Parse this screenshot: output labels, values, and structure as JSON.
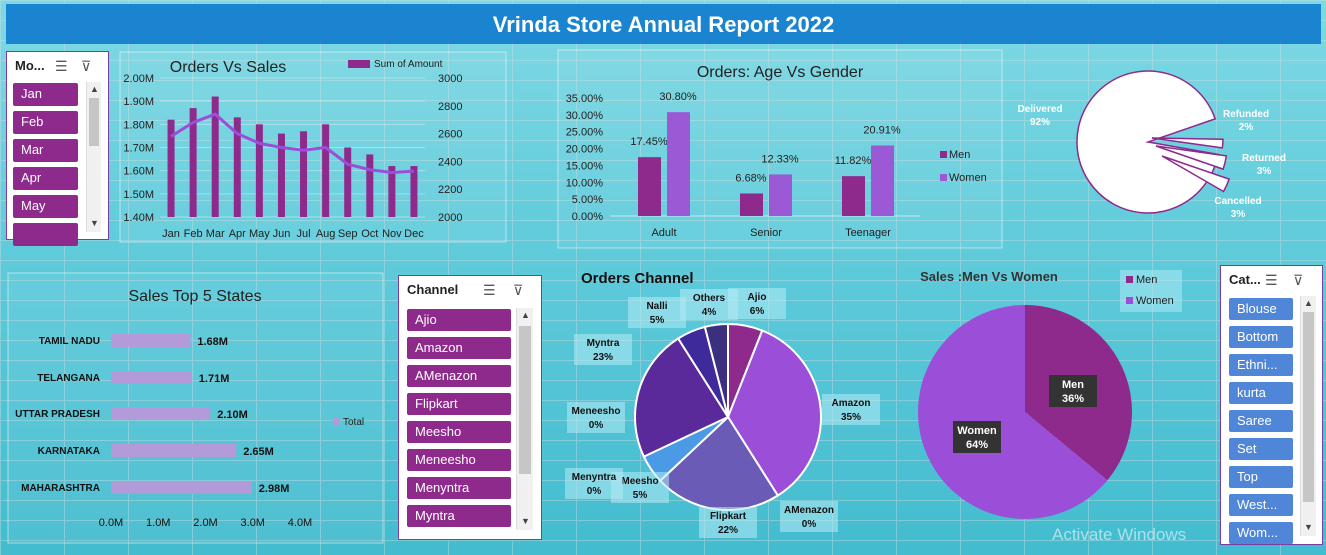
{
  "report_title": "Vrinda Store Annual Report 2022",
  "watermark": "Activate Windows",
  "month_slicer": {
    "header": "Mo...",
    "items": [
      "Jan",
      "Feb",
      "Mar",
      "Apr",
      "May",
      ""
    ]
  },
  "channel_slicer": {
    "header": "Channel",
    "items": [
      "Ajio",
      "Amazon",
      "AMenazon",
      "Flipkart",
      "Meesho",
      "Meneesho",
      "Menyntra",
      "Myntra"
    ]
  },
  "category_slicer": {
    "header": "Cat...",
    "items": [
      "Blouse",
      "Bottom",
      "Ethni...",
      "kurta",
      "Saree",
      "Set",
      "Top",
      "West...",
      "Wom..."
    ]
  },
  "colors": {
    "title_bar": "#1a84d0",
    "purple_dark": "#8e2a8c",
    "purple_light": "#9b59d6",
    "slicer_fill": "#8e2a8c",
    "cat_fill": "#4f86d8"
  },
  "chart_data": [
    {
      "id": "orders_vs_sales",
      "type": "bar",
      "title": "Orders Vs Sales",
      "categories": [
        "Jan",
        "Feb",
        "Mar",
        "Apr",
        "May",
        "Jun",
        "Jul",
        "Aug",
        "Sep",
        "Oct",
        "Nov",
        "Dec"
      ],
      "series": [
        {
          "name": "Sum of Amount",
          "values": [
            1.82,
            1.87,
            1.92,
            1.83,
            1.8,
            1.76,
            1.77,
            1.8,
            1.7,
            1.67,
            1.62,
            1.62
          ]
        },
        {
          "name": "",
          "type": "line",
          "values": [
            2580,
            2680,
            2740,
            2600,
            2530,
            2500,
            2480,
            2500,
            2380,
            2340,
            2320,
            2330
          ]
        }
      ],
      "ylim": [
        1.4,
        2.0
      ],
      "y_ticks": [
        "1.40M",
        "1.50M",
        "1.60M",
        "1.70M",
        "1.80M",
        "1.90M",
        "2.00M"
      ],
      "y2lim": [
        2000,
        3000
      ],
      "y2_ticks": [
        "2000",
        "2200",
        "2400",
        "2600",
        "2800",
        "3000"
      ],
      "legend": "top-right"
    },
    {
      "id": "age_vs_gender",
      "type": "bar",
      "title": "Orders: Age Vs Gender",
      "categories": [
        "Adult",
        "Senior",
        "Teenager"
      ],
      "series": [
        {
          "name": "Men",
          "values": [
            17.45,
            6.68,
            11.82
          ],
          "labels": [
            "17.45%",
            "6.68%",
            "11.82%"
          ]
        },
        {
          "name": "Women",
          "values": [
            30.8,
            12.33,
            20.91
          ],
          "labels": [
            "30.80%",
            "12.33%",
            "20.91%"
          ]
        }
      ],
      "ylim": [
        0,
        35
      ],
      "y_ticks": [
        "0.00%",
        "5.00%",
        "10.00%",
        "15.00%",
        "20.00%",
        "25.00%",
        "30.00%",
        "35.00%"
      ],
      "legend": "right"
    },
    {
      "id": "status_pie",
      "type": "pie",
      "slices": [
        {
          "name": "Delivered",
          "value": 92,
          "label": "92%"
        },
        {
          "name": "Refunded",
          "value": 2,
          "label": "2%"
        },
        {
          "name": "Returned",
          "value": 3,
          "label": "3%"
        },
        {
          "name": "Cancelled",
          "value": 3,
          "label": "3%"
        }
      ]
    },
    {
      "id": "top_states",
      "type": "bar",
      "orientation": "horizontal",
      "title": "Sales Top 5 States",
      "categories": [
        "TAMIL NADU",
        "TELANGANA",
        "UTTAR PRADESH",
        "KARNATAKA",
        "MAHARASHTRA"
      ],
      "values": [
        1.68,
        1.71,
        2.1,
        2.65,
        2.98
      ],
      "labels": [
        "1.68M",
        "1.71M",
        "2.10M",
        "2.65M",
        "2.98M"
      ],
      "xlim": [
        0,
        4
      ],
      "x_ticks": [
        "0.0M",
        "1.0M",
        "2.0M",
        "3.0M",
        "4.0M"
      ],
      "legend_entry": "Total"
    },
    {
      "id": "orders_channel",
      "type": "pie",
      "title": "Orders Channel",
      "slices": [
        {
          "name": "Ajio",
          "value": 6,
          "label": "6%",
          "color": "#8e2a8c"
        },
        {
          "name": "Amazon",
          "value": 35,
          "label": "35%",
          "color": "#9b4fd8"
        },
        {
          "name": "AMenazon",
          "value": 0,
          "label": "0%",
          "color": "#7a3fb0"
        },
        {
          "name": "Flipkart",
          "value": 22,
          "label": "22%",
          "color": "#6a5bb7"
        },
        {
          "name": "Meesho",
          "value": 5,
          "label": "5%",
          "color": "#4a9ae6"
        },
        {
          "name": "Menyntra",
          "value": 0,
          "label": "0%",
          "color": "#3d3da8"
        },
        {
          "name": "Meneesho",
          "value": 0,
          "label": "0%",
          "color": "#5b3fa8"
        },
        {
          "name": "Myntra",
          "value": 23,
          "label": "23%",
          "color": "#5a2a9a"
        },
        {
          "name": "Nalli",
          "value": 5,
          "label": "5%",
          "color": "#3e2a9a"
        },
        {
          "name": "Others",
          "value": 4,
          "label": "4%",
          "color": "#3b3080"
        }
      ]
    },
    {
      "id": "sales_men_women",
      "type": "pie",
      "title": "Sales :Men Vs Women",
      "slices": [
        {
          "name": "Men",
          "value": 36,
          "label": "36%",
          "color": "#8e2a8c"
        },
        {
          "name": "Women",
          "value": 64,
          "label": "64%",
          "color": "#9b4fd8"
        }
      ],
      "legend": "top-right"
    }
  ]
}
